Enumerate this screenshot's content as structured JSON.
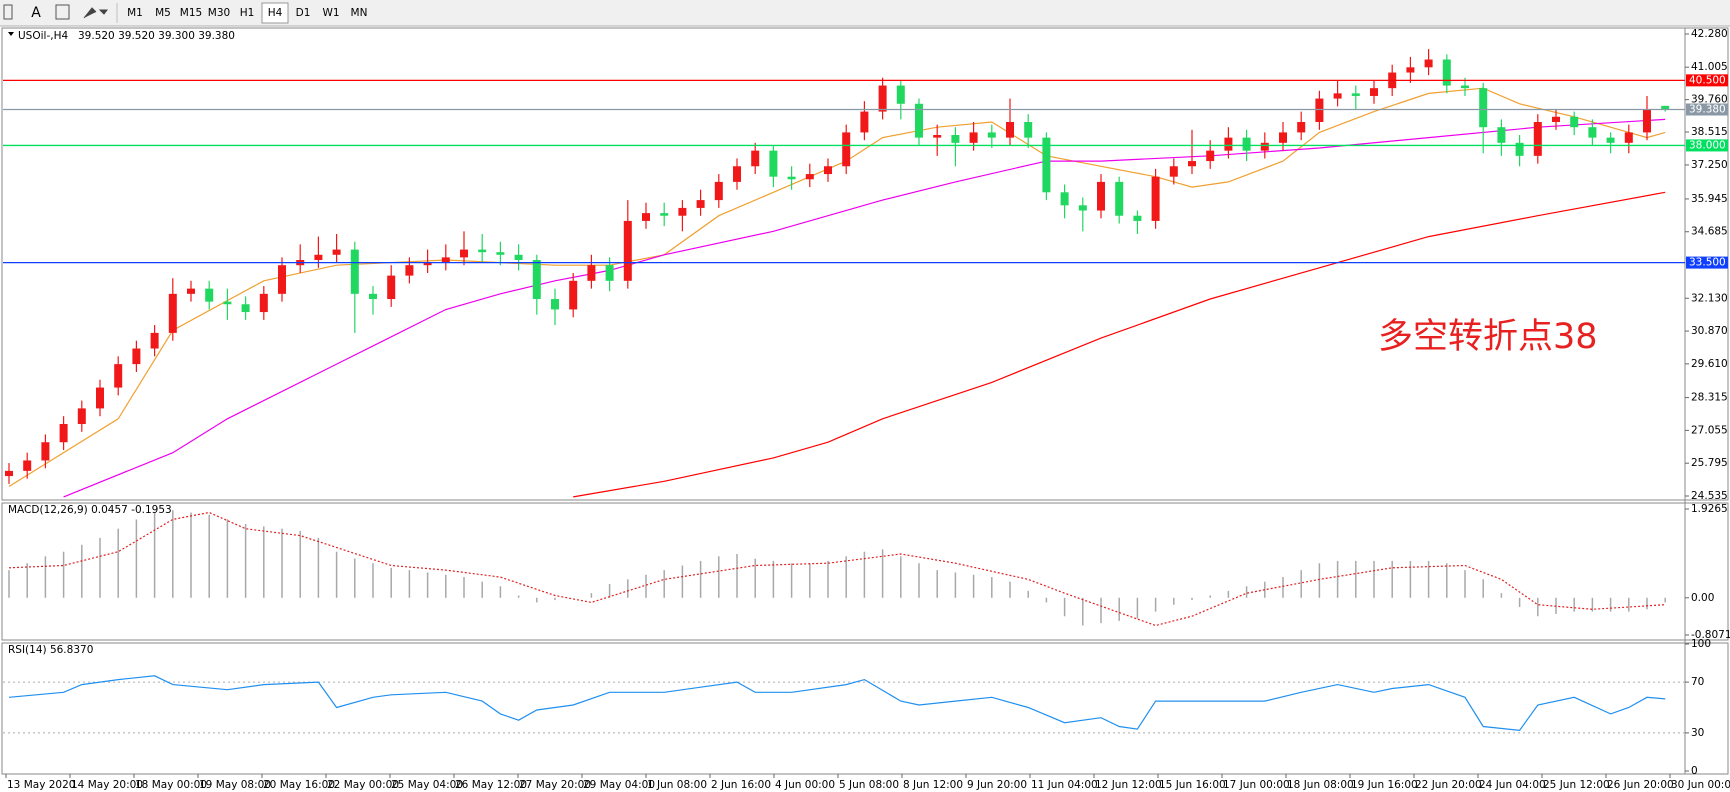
{
  "toolbar": {
    "tool_label": "A",
    "timeframes": [
      "M1",
      "M5",
      "M15",
      "M30",
      "H1",
      "H4",
      "D1",
      "W1",
      "MN"
    ],
    "active_index": 5
  },
  "time_axis_labels": [
    "13 May 2020",
    "14 May 20:00",
    "18 May 00:00",
    "19 May 08:00",
    "20 May 16:00",
    "22 May 00:00",
    "25 May 04:00",
    "26 May 12:00",
    "27 May 20:00",
    "29 May 04:00",
    "1 Jun 08:00",
    "2 Jun 16:00",
    "4 Jun 00:00",
    "5 Jun 08:00",
    "8 Jun 12:00",
    "9 Jun 20:00",
    "11 Jun 04:00",
    "12 Jun 12:00",
    "15 Jun 16:00",
    "17 Jun 00:00",
    "18 Jun 08:00",
    "19 Jun 16:00",
    "22 Jun 20:00",
    "24 Jun 04:00",
    "25 Jun 12:00",
    "26 Jun 20:00",
    "30 Jun 00:00"
  ],
  "chart_data": [
    {
      "type": "candlestick",
      "title": "USOil-,H4",
      "subtitle": "39.520 39.520 39.300 39.380",
      "annotation": "多空转折点38",
      "up_color": "#f01818",
      "down_color": "#20d860",
      "open": [
        25.3,
        25.5,
        25.9,
        26.6,
        27.3,
        27.9,
        28.7,
        29.6,
        30.2,
        30.8,
        32.3,
        32.5,
        32.0,
        31.9,
        31.6,
        32.3,
        33.4,
        33.6,
        33.8,
        34.0,
        32.3,
        32.1,
        33.0,
        33.4,
        33.5,
        33.7,
        34.0,
        33.9,
        33.8,
        33.6,
        32.1,
        31.7,
        32.8,
        33.4,
        32.8,
        35.1,
        35.4,
        35.3,
        35.6,
        35.9,
        36.6,
        37.2,
        37.8,
        36.8,
        36.7,
        36.9,
        37.2,
        38.5,
        39.3,
        40.3,
        39.6,
        38.3,
        38.4,
        38.1,
        38.5,
        38.3,
        38.9,
        38.3,
        36.2,
        35.7,
        35.5,
        36.6,
        35.3,
        35.1,
        36.8,
        37.2,
        37.4,
        37.8,
        38.3,
        37.8,
        38.1,
        38.5,
        38.9,
        39.8,
        40.0,
        39.9,
        40.2,
        40.8,
        41.0,
        41.3,
        40.3,
        40.2,
        38.7,
        38.1,
        37.6,
        38.9,
        39.1,
        38.7,
        38.3,
        38.1,
        38.5,
        39.52
      ],
      "high": [
        25.8,
        26.2,
        26.9,
        27.6,
        28.2,
        29.0,
        29.9,
        30.5,
        31.1,
        32.9,
        32.8,
        32.8,
        32.5,
        32.2,
        32.6,
        33.7,
        34.2,
        34.5,
        34.6,
        34.3,
        32.6,
        33.4,
        33.7,
        34.0,
        34.2,
        34.7,
        34.6,
        34.3,
        34.2,
        33.8,
        32.5,
        33.1,
        33.8,
        33.7,
        35.9,
        35.8,
        35.8,
        35.9,
        36.3,
        36.9,
        37.5,
        38.1,
        38.0,
        37.2,
        37.3,
        37.5,
        38.8,
        39.7,
        40.6,
        40.5,
        39.8,
        38.8,
        38.7,
        38.9,
        38.8,
        39.8,
        39.2,
        38.5,
        36.5,
        36.0,
        36.9,
        36.8,
        35.5,
        37.1,
        37.5,
        38.6,
        38.2,
        38.7,
        38.6,
        38.5,
        38.9,
        39.3,
        40.1,
        40.5,
        40.3,
        40.5,
        41.1,
        41.4,
        41.7,
        41.5,
        40.6,
        40.4,
        39.0,
        38.4,
        39.2,
        39.4,
        39.3,
        39.0,
        38.5,
        38.8,
        39.9,
        39.52
      ],
      "low": [
        25.0,
        25.2,
        25.6,
        26.3,
        27.0,
        27.6,
        28.4,
        29.3,
        29.9,
        30.5,
        32.0,
        31.7,
        31.3,
        31.3,
        31.3,
        32.0,
        33.1,
        33.3,
        33.5,
        30.8,
        31.5,
        31.8,
        32.7,
        33.1,
        33.2,
        33.4,
        33.5,
        33.4,
        33.2,
        31.5,
        31.1,
        31.4,
        32.5,
        32.4,
        32.5,
        34.8,
        34.9,
        34.7,
        35.3,
        35.6,
        36.3,
        36.9,
        36.4,
        36.3,
        36.4,
        36.6,
        36.9,
        38.2,
        39.0,
        39.0,
        38.0,
        37.6,
        37.2,
        37.8,
        37.9,
        38.0,
        37.9,
        35.9,
        35.2,
        34.7,
        35.2,
        35.0,
        34.6,
        34.8,
        36.5,
        36.9,
        37.1,
        37.5,
        37.4,
        37.5,
        37.8,
        38.2,
        38.6,
        39.5,
        39.4,
        39.6,
        39.9,
        40.4,
        40.7,
        40.0,
        39.9,
        37.7,
        37.6,
        37.2,
        37.3,
        38.6,
        38.4,
        38.0,
        37.7,
        37.7,
        38.2,
        39.3
      ],
      "close": [
        25.5,
        25.9,
        26.6,
        27.3,
        27.9,
        28.7,
        29.6,
        30.2,
        30.8,
        32.3,
        32.5,
        32.0,
        31.9,
        31.6,
        32.3,
        33.4,
        33.6,
        33.8,
        34.0,
        32.3,
        32.1,
        33.0,
        33.4,
        33.5,
        33.7,
        34.0,
        33.9,
        33.8,
        33.6,
        32.1,
        31.7,
        32.8,
        33.4,
        32.8,
        35.1,
        35.4,
        35.3,
        35.6,
        35.9,
        36.6,
        37.2,
        37.8,
        36.8,
        36.7,
        36.9,
        37.2,
        38.5,
        39.3,
        40.3,
        39.6,
        38.3,
        38.4,
        38.1,
        38.5,
        38.3,
        38.9,
        38.3,
        36.2,
        35.7,
        35.5,
        36.6,
        35.3,
        35.1,
        36.8,
        37.2,
        37.4,
        37.8,
        38.3,
        37.8,
        38.1,
        38.5,
        38.9,
        39.8,
        40.0,
        39.9,
        40.2,
        40.8,
        41.0,
        41.3,
        40.3,
        40.2,
        38.7,
        38.1,
        37.6,
        38.9,
        39.1,
        38.7,
        38.3,
        38.1,
        38.5,
        39.4,
        39.38
      ],
      "series": [
        {
          "color": "#f0a030",
          "x": [
            0,
            6,
            9,
            14,
            18,
            24,
            30,
            33,
            36,
            39,
            42,
            46,
            48,
            51,
            54,
            57,
            60,
            63,
            65,
            67,
            70,
            72,
            75,
            78,
            81,
            83,
            86,
            88,
            90,
            91
          ],
          "values": [
            24.9,
            27.5,
            30.9,
            32.8,
            33.4,
            33.6,
            33.4,
            33.4,
            33.8,
            35.3,
            36.2,
            37.4,
            38.3,
            38.7,
            38.9,
            37.6,
            37.2,
            36.8,
            36.4,
            36.6,
            37.4,
            38.5,
            39.3,
            40.0,
            40.2,
            39.6,
            39.1,
            38.7,
            38.3,
            38.5
          ]
        },
        {
          "color": "#ee00ee",
          "x": [
            3,
            9,
            12,
            18,
            24,
            27,
            30,
            33,
            36,
            42,
            48,
            52,
            57,
            60,
            66,
            72,
            78,
            84,
            91
          ],
          "values": [
            24.5,
            26.2,
            27.5,
            29.6,
            31.7,
            32.3,
            32.8,
            33.2,
            33.8,
            34.7,
            35.9,
            36.6,
            37.4,
            37.4,
            37.6,
            37.9,
            38.3,
            38.7,
            39.0
          ]
        },
        {
          "color": "#ff0000",
          "x": [
            31,
            36,
            42,
            45,
            48,
            54,
            60,
            66,
            72,
            78,
            84,
            91
          ],
          "values": [
            24.5,
            25.1,
            26.0,
            26.6,
            27.5,
            28.9,
            30.6,
            32.1,
            33.3,
            34.5,
            35.3,
            36.2
          ]
        }
      ],
      "levels": [
        {
          "value": 40.5,
          "label": "40.500",
          "color": "#ff0000"
        },
        {
          "value": 39.38,
          "label": "39.380",
          "color": "#8a98a6"
        },
        {
          "value": 38.0,
          "label": "38.000",
          "color": "#00e060"
        },
        {
          "value": 33.5,
          "label": "33.500",
          "color": "#1040ff"
        }
      ],
      "ylim": [
        24.535,
        42.28
      ],
      "yticks": [
        {
          "value": 42.28,
          "label": "42.280"
        },
        {
          "value": 41.005,
          "label": "41.005"
        },
        {
          "value": 39.76,
          "label": "39.760"
        },
        {
          "value": 38.515,
          "label": "38.515"
        },
        {
          "value": 37.25,
          "label": "37.250"
        },
        {
          "value": 35.945,
          "label": "35.945"
        },
        {
          "value": 34.685,
          "label": "34.685"
        },
        {
          "value": 32.13,
          "label": "32.130"
        },
        {
          "value": 30.87,
          "label": "30.870"
        },
        {
          "value": 29.61,
          "label": "29.610"
        },
        {
          "value": 28.315,
          "label": "28.315"
        },
        {
          "value": 27.055,
          "label": "27.055"
        },
        {
          "value": 25.795,
          "label": "25.795"
        },
        {
          "value": 24.535,
          "label": "24.535"
        }
      ]
    },
    {
      "type": "macd",
      "title": "MACD(12,26,9) 0.0457 -0.1953",
      "series": [
        {
          "color": "#a8a8a8",
          "values": [
            0.6,
            0.75,
            0.9,
            1.0,
            1.15,
            1.3,
            1.5,
            1.7,
            1.85,
            1.9,
            1.85,
            1.8,
            1.7,
            1.6,
            1.55,
            1.5,
            1.45,
            1.3,
            1.0,
            0.85,
            0.75,
            0.65,
            0.6,
            0.55,
            0.5,
            0.45,
            0.35,
            0.25,
            0.05,
            -0.1,
            -0.05,
            0.0,
            0.1,
            0.3,
            0.4,
            0.5,
            0.6,
            0.7,
            0.8,
            0.9,
            0.95,
            0.85,
            0.8,
            0.75,
            0.75,
            0.8,
            0.9,
            1.0,
            1.05,
            0.9,
            0.75,
            0.6,
            0.55,
            0.5,
            0.45,
            0.35,
            0.15,
            -0.1,
            -0.4,
            -0.6,
            -0.55,
            -0.5,
            -0.45,
            -0.3,
            -0.15,
            -0.05,
            0.05,
            0.15,
            0.25,
            0.35,
            0.45,
            0.6,
            0.75,
            0.8,
            0.8,
            0.8,
            0.8,
            0.8,
            0.8,
            0.75,
            0.6,
            0.4,
            0.1,
            -0.2,
            -0.4,
            -0.35,
            -0.3,
            -0.3,
            -0.3,
            -0.3,
            -0.25,
            -0.1
          ]
        },
        {
          "color": "#e02020",
          "x": [
            0,
            3,
            6,
            9,
            11,
            13,
            16,
            21,
            24,
            27,
            30,
            32,
            36,
            41,
            45,
            49,
            52,
            56,
            58,
            63,
            65,
            68,
            72,
            76,
            80,
            82,
            84,
            87,
            91
          ],
          "values": [
            0.65,
            0.7,
            1.0,
            1.7,
            1.85,
            1.5,
            1.35,
            0.7,
            0.6,
            0.45,
            0.05,
            -0.1,
            0.4,
            0.7,
            0.75,
            0.95,
            0.75,
            0.4,
            0.1,
            -0.6,
            -0.4,
            0.1,
            0.4,
            0.65,
            0.7,
            0.4,
            -0.15,
            -0.25,
            -0.15
          ]
        }
      ],
      "ylim": [
        -0.8071,
        1.9265
      ],
      "yticks": [
        1.9265,
        {
          "value": 0,
          "label": "0.00"
        },
        -0.8071
      ]
    },
    {
      "type": "line",
      "title": "RSI(14) 56.8370",
      "grid": true,
      "series": [
        {
          "color": "#2090f0",
          "x": [
            0,
            3,
            4,
            6,
            8,
            9,
            12,
            14,
            17,
            18,
            20,
            21,
            24,
            26,
            27,
            28,
            29,
            31,
            33,
            36,
            38,
            40,
            41,
            43,
            46,
            47,
            49,
            50,
            52,
            54,
            56,
            58,
            60,
            61,
            62,
            63,
            65,
            67,
            69,
            71,
            73,
            75,
            76,
            78,
            80,
            81,
            83,
            84,
            86,
            88,
            89,
            90,
            91
          ],
          "values": [
            58,
            62,
            68,
            72,
            75,
            68,
            64,
            68,
            70,
            50,
            58,
            60,
            62,
            55,
            45,
            40,
            48,
            52,
            62,
            62,
            66,
            70,
            62,
            62,
            68,
            72,
            55,
            52,
            55,
            58,
            50,
            38,
            42,
            35,
            33,
            55,
            55,
            55,
            55,
            62,
            68,
            62,
            65,
            68,
            58,
            35,
            32,
            52,
            58,
            45,
            50,
            58,
            56.8
          ]
        }
      ],
      "ylim": [
        0,
        100
      ],
      "yticks": [
        100,
        70,
        30,
        0
      ]
    }
  ]
}
